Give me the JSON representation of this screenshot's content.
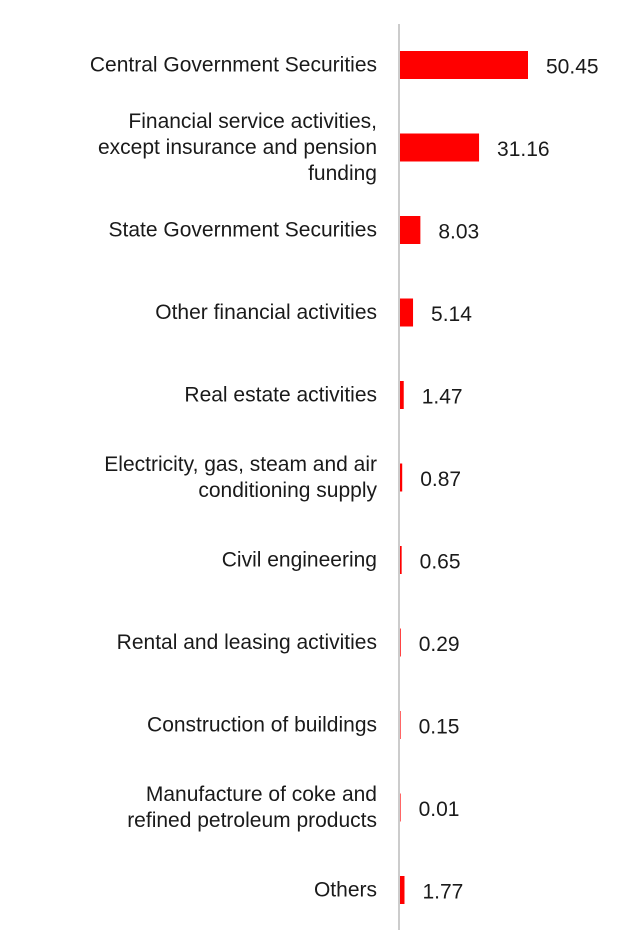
{
  "chart_data": {
    "type": "bar",
    "orientation": "horizontal",
    "categories": [
      [
        "Central Government Securities"
      ],
      [
        "Financial service activities,",
        "except insurance and pension",
        "funding"
      ],
      [
        "State Government Securities"
      ],
      [
        "Other financial activities"
      ],
      [
        "Real estate activities"
      ],
      [
        "Electricity, gas, steam and air",
        "conditioning supply"
      ],
      [
        "Civil engineering"
      ],
      [
        "Rental and leasing activities"
      ],
      [
        "Construction of buildings"
      ],
      [
        "Manufacture of coke and",
        "refined petroleum products"
      ],
      [
        "Others"
      ]
    ],
    "values": [
      50.45,
      31.16,
      8.03,
      5.14,
      1.47,
      0.87,
      0.65,
      0.29,
      0.15,
      0.01,
      1.77
    ],
    "value_labels": [
      "50.45",
      "31.16",
      "8.03",
      "5.14",
      "1.47",
      "0.87",
      "0.65",
      "0.29",
      "0.15",
      "0.01",
      "1.77"
    ],
    "bar_color": "#ff0000",
    "axis_color": "#cccccc",
    "xlim": [
      0,
      50.45
    ],
    "title": "",
    "xlabel": "",
    "ylabel": "",
    "grid": false,
    "legend": "none"
  }
}
